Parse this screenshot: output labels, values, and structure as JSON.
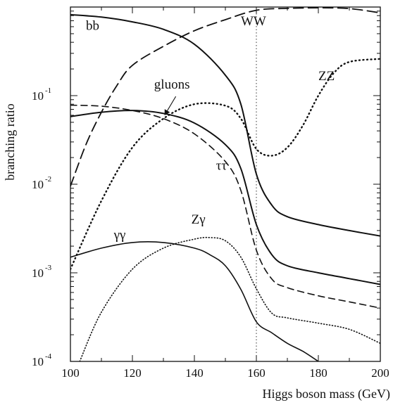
{
  "chart_data": {
    "type": "line",
    "title": "",
    "xlabel": "Higgs boson mass (GeV)",
    "ylabel": "branching ratio",
    "xlim": [
      100,
      200
    ],
    "ylim": [
      0.0001,
      1
    ],
    "yscale": "log",
    "x_ticks": [
      {
        "value": 100,
        "label": "100"
      },
      {
        "value": 120,
        "label": "120"
      },
      {
        "value": 140,
        "label": "140"
      },
      {
        "value": 160,
        "label": "160"
      },
      {
        "value": 180,
        "label": "180"
      },
      {
        "value": 200,
        "label": "200"
      }
    ],
    "y_ticks": [
      {
        "value": 0.1,
        "base": "10",
        "exp": "-1"
      },
      {
        "value": 0.01,
        "base": "10",
        "exp": "-2"
      },
      {
        "value": 0.001,
        "base": "10",
        "exp": "-3"
      },
      {
        "value": 0.0001,
        "base": "10",
        "exp": "-4"
      }
    ],
    "grid": "dotted vertical line at x=160 only",
    "series": [
      {
        "name": "bb",
        "style": "solid",
        "label": {
          "text": "bb",
          "x": 105,
          "y": 0.55
        },
        "points": [
          [
            100,
            0.82
          ],
          [
            110,
            0.77
          ],
          [
            120,
            0.68
          ],
          [
            130,
            0.56
          ],
          [
            140,
            0.38
          ],
          [
            150,
            0.17
          ],
          [
            155,
            0.08
          ],
          [
            160,
            0.013
          ],
          [
            165,
            0.0058
          ],
          [
            170,
            0.0043
          ],
          [
            180,
            0.0035
          ],
          [
            190,
            0.003
          ],
          [
            200,
            0.0026
          ]
        ]
      },
      {
        "name": "WW",
        "style": "dash",
        "label": {
          "text": "WW",
          "x": 155,
          "y": 0.62
        },
        "points": [
          [
            100,
            0.0095
          ],
          [
            105,
            0.028
          ],
          [
            110,
            0.065
          ],
          [
            115,
            0.13
          ],
          [
            120,
            0.22
          ],
          [
            130,
            0.36
          ],
          [
            140,
            0.54
          ],
          [
            150,
            0.72
          ],
          [
            160,
            0.92
          ],
          [
            170,
            0.965
          ],
          [
            180,
            0.98
          ],
          [
            190,
            0.96
          ],
          [
            200,
            0.86
          ]
        ]
      },
      {
        "name": "ZZ",
        "style": "dot",
        "label": {
          "text": "ZZ",
          "x": 180,
          "y": 0.15
        },
        "points": [
          [
            100,
            0.0011
          ],
          [
            110,
            0.0065
          ],
          [
            120,
            0.026
          ],
          [
            130,
            0.055
          ],
          [
            140,
            0.08
          ],
          [
            150,
            0.077
          ],
          [
            155,
            0.055
          ],
          [
            160,
            0.025
          ],
          [
            165,
            0.021
          ],
          [
            170,
            0.026
          ],
          [
            175,
            0.046
          ],
          [
            180,
            0.1
          ],
          [
            185,
            0.18
          ],
          [
            190,
            0.24
          ],
          [
            200,
            0.26
          ]
        ]
      },
      {
        "name": "gluons",
        "style": "dash",
        "label": {
          "text": "gluons",
          "x": 127,
          "y": 0.12
        },
        "points": [
          [
            100,
            0.078
          ],
          [
            110,
            0.076
          ],
          [
            120,
            0.068
          ],
          [
            130,
            0.055
          ],
          [
            140,
            0.037
          ],
          [
            150,
            0.018
          ],
          [
            155,
            0.0085
          ],
          [
            160,
            0.0018
          ],
          [
            165,
            0.00085
          ],
          [
            170,
            0.00068
          ],
          [
            180,
            0.00055
          ],
          [
            190,
            0.00047
          ],
          [
            200,
            0.0004
          ]
        ]
      },
      {
        "name": "ττ",
        "style": "solid",
        "label": {
          "text": "ττ",
          "x": 147,
          "y": 0.0145
        },
        "points": [
          [
            100,
            0.058
          ],
          [
            110,
            0.065
          ],
          [
            120,
            0.068
          ],
          [
            130,
            0.063
          ],
          [
            140,
            0.049
          ],
          [
            150,
            0.028
          ],
          [
            155,
            0.015
          ],
          [
            160,
            0.0035
          ],
          [
            165,
            0.0016
          ],
          [
            170,
            0.0012
          ],
          [
            180,
            0.001
          ],
          [
            190,
            0.00086
          ],
          [
            200,
            0.00074
          ]
        ]
      },
      {
        "name": "Zγ",
        "style": "dot",
        "label": {
          "text": "Zγ",
          "x": 139,
          "y": 0.0036
        },
        "points": [
          [
            103,
            0.0001
          ],
          [
            110,
            0.00036
          ],
          [
            120,
            0.0011
          ],
          [
            130,
            0.0019
          ],
          [
            140,
            0.0024
          ],
          [
            145,
            0.0025
          ],
          [
            150,
            0.0023
          ],
          [
            155,
            0.0015
          ],
          [
            160,
            0.00066
          ],
          [
            165,
            0.00035
          ],
          [
            170,
            0.00031
          ],
          [
            180,
            0.00027
          ],
          [
            190,
            0.00023
          ],
          [
            200,
            0.00016
          ]
        ]
      },
      {
        "name": "γγ",
        "style": "solid",
        "label": {
          "text": "γγ",
          "x": 114,
          "y": 0.0024
        },
        "points": [
          [
            100,
            0.0015
          ],
          [
            110,
            0.0019
          ],
          [
            120,
            0.0022
          ],
          [
            130,
            0.0022
          ],
          [
            140,
            0.0019
          ],
          [
            145,
            0.0016
          ],
          [
            150,
            0.0012
          ],
          [
            155,
            0.00065
          ],
          [
            160,
            0.00028
          ],
          [
            165,
            0.00021
          ],
          [
            170,
            0.00016
          ],
          [
            175,
            0.00013
          ],
          [
            180,
            0.0001
          ]
        ]
      }
    ]
  }
}
